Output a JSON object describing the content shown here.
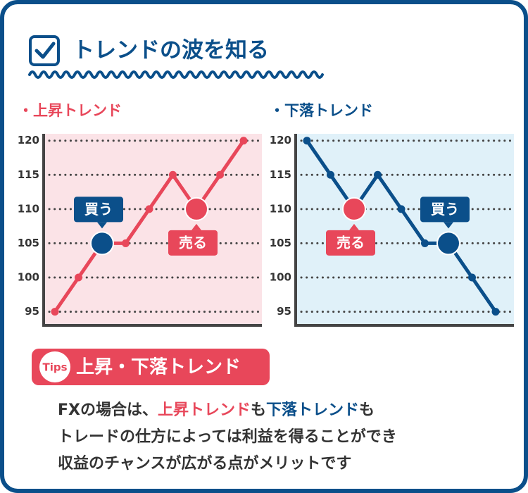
{
  "header": {
    "title": "トレンドの波を知る"
  },
  "chart_data": [
    {
      "type": "line",
      "title": "・上昇トレンド",
      "color": "#e8475a",
      "background": "#fbe3e7",
      "categories": [
        null,
        null,
        null,
        null,
        null,
        null,
        null,
        null,
        null
      ],
      "values": [
        95,
        100,
        105,
        105,
        110,
        115,
        110,
        115,
        120
      ],
      "ylim": [
        93,
        121
      ],
      "yticks": [
        95,
        100,
        105,
        110,
        115,
        120
      ],
      "grid": true,
      "annotations": [
        {
          "point": 2,
          "text": "買う",
          "color": "#0b4f8a"
        },
        {
          "point": 6,
          "text": "売る",
          "color": "#e8475a"
        }
      ]
    },
    {
      "type": "line",
      "title": "・下落トレンド",
      "color": "#0b4f8a",
      "background": "#e0f1f9",
      "categories": [
        null,
        null,
        null,
        null,
        null,
        null,
        null,
        null,
        null
      ],
      "values": [
        120,
        115,
        110,
        115,
        110,
        105,
        105,
        100,
        95
      ],
      "ylim": [
        93,
        121
      ],
      "yticks": [
        95,
        100,
        105,
        110,
        115,
        120
      ],
      "grid": true,
      "annotations": [
        {
          "point": 2,
          "text": "売る",
          "color": "#e8475a"
        },
        {
          "point": 6,
          "text": "買う",
          "color": "#0b4f8a"
        }
      ]
    }
  ],
  "tips": {
    "badge": "Tips",
    "title": "上昇・下落トレンド",
    "lines": [
      [
        {
          "text": "FXの場合は、"
        },
        {
          "text": "上昇トレンド",
          "color": "#e8475a"
        },
        {
          "text": "も"
        },
        {
          "text": "下落トレンド",
          "color": "#0b4f8a"
        },
        {
          "text": "も"
        }
      ],
      [
        {
          "text": "トレードの仕方によっては利益を得ることができ"
        }
      ],
      [
        {
          "text": "収益のチャンスが広がる点がメリットです"
        }
      ]
    ]
  }
}
